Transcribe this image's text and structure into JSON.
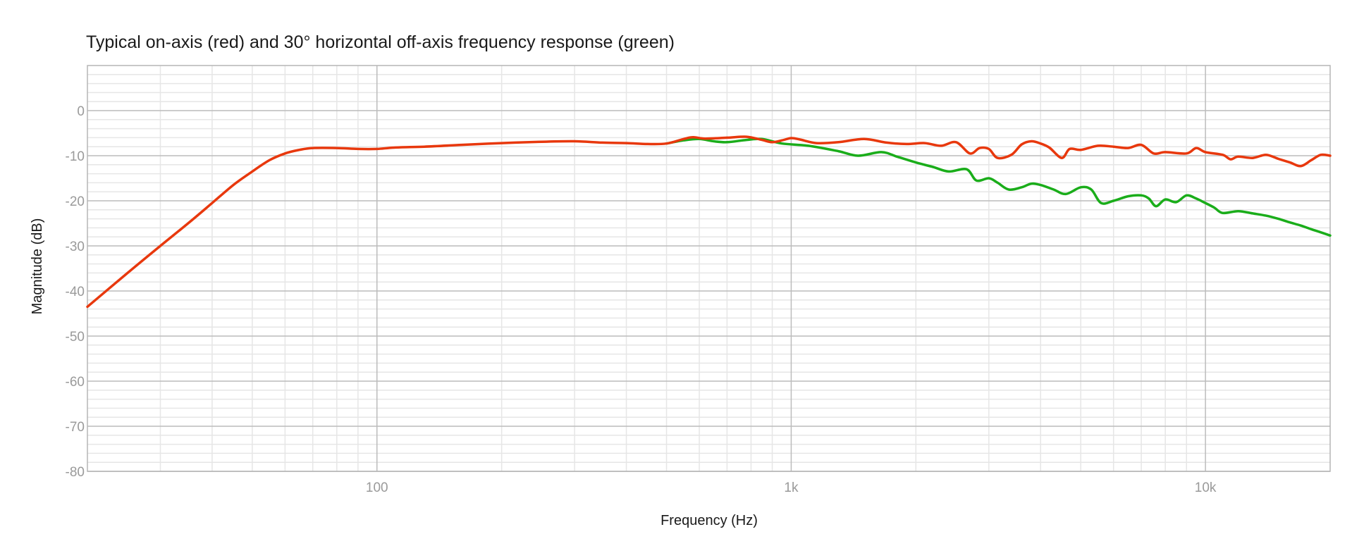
{
  "chart_data": {
    "type": "line",
    "title": "Typical on-axis (red) and 30° horizontal off-axis frequency response (green)",
    "xlabel": "Frequency (Hz)",
    "ylabel": "Magnitude (dB)",
    "xscale": "log",
    "xlim": [
      20,
      20000
    ],
    "ylim": [
      -80,
      10
    ],
    "x_ticks": [
      {
        "value": 100,
        "label": "100"
      },
      {
        "value": 1000,
        "label": "1k"
      },
      {
        "value": 10000,
        "label": "10k"
      }
    ],
    "y_ticks": [
      {
        "value": 0,
        "label": "0"
      },
      {
        "value": -10,
        "label": "-10"
      },
      {
        "value": -20,
        "label": "-20"
      },
      {
        "value": -30,
        "label": "-30"
      },
      {
        "value": -40,
        "label": "-40"
      },
      {
        "value": -50,
        "label": "-50"
      },
      {
        "value": -60,
        "label": "-60"
      },
      {
        "value": -70,
        "label": "-70"
      },
      {
        "value": -80,
        "label": "-80"
      }
    ],
    "grid": true,
    "series": [
      {
        "color": "#e8380d",
        "x": [
          20,
          25,
          30,
          35,
          40,
          45,
          50,
          55,
          60,
          65,
          70,
          80,
          90,
          100,
          110,
          130,
          160,
          200,
          250,
          300,
          350,
          400,
          450,
          500,
          550,
          580,
          620,
          700,
          780,
          850,
          900,
          950,
          1000,
          1050,
          1150,
          1300,
          1500,
          1700,
          1900,
          2100,
          2300,
          2500,
          2700,
          2850,
          3000,
          3150,
          3400,
          3600,
          3800,
          4000,
          4200,
          4500,
          4700,
          5000,
          5500,
          6000,
          6500,
          7000,
          7500,
          8000,
          9000,
          9500,
          10000,
          11000,
          11500,
          12000,
          13000,
          14000,
          15000,
          16000,
          17000,
          18000,
          19000,
          20000
        ],
        "y": [
          -43.5,
          -36,
          -30,
          -25,
          -20.5,
          -16.5,
          -13.5,
          -11,
          -9.5,
          -8.7,
          -8.3,
          -8.3,
          -8.5,
          -8.5,
          -8.2,
          -8,
          -7.6,
          -7.2,
          -6.9,
          -6.8,
          -7.1,
          -7.2,
          -7.4,
          -7.3,
          -6.3,
          -5.9,
          -6.2,
          -6.0,
          -5.8,
          -6.5,
          -7.0,
          -6.6,
          -6.1,
          -6.4,
          -7.2,
          -7.0,
          -6.3,
          -7.1,
          -7.4,
          -7.2,
          -7.8,
          -7.0,
          -9.5,
          -8.3,
          -8.5,
          -10.5,
          -9.8,
          -7.5,
          -6.8,
          -7.3,
          -8.2,
          -10.5,
          -8.5,
          -8.7,
          -7.8,
          -8.0,
          -8.3,
          -7.6,
          -9.5,
          -9.2,
          -9.5,
          -8.3,
          -9.2,
          -9.8,
          -10.8,
          -10.2,
          -10.5,
          -9.8,
          -10.7,
          -11.5,
          -12.3,
          -11.0,
          -9.8,
          -10.0
        ]
      },
      {
        "color": "#1aad1a",
        "x": [
          500,
          550,
          600,
          650,
          700,
          780,
          850,
          950,
          1100,
          1300,
          1450,
          1650,
          1800,
          2000,
          2200,
          2400,
          2650,
          2800,
          3000,
          3150,
          3350,
          3600,
          3800,
          4000,
          4300,
          4600,
          5000,
          5300,
          5600,
          6000,
          6500,
          7000,
          7300,
          7600,
          8000,
          8500,
          9000,
          9500,
          10000,
          10500,
          11000,
          12000,
          13000,
          14000,
          15000,
          16000,
          17000,
          18000,
          19000,
          20000
        ],
        "y": [
          -7.3,
          -6.6,
          -6.3,
          -6.8,
          -7.0,
          -6.5,
          -6.3,
          -7.3,
          -7.8,
          -9.0,
          -10.0,
          -9.2,
          -10.2,
          -11.5,
          -12.5,
          -13.5,
          -13.0,
          -15.5,
          -15.0,
          -16.0,
          -17.5,
          -17.0,
          -16.2,
          -16.5,
          -17.5,
          -18.5,
          -17.0,
          -17.5,
          -20.5,
          -20.0,
          -19.0,
          -18.8,
          -19.5,
          -21.2,
          -19.7,
          -20.3,
          -18.8,
          -19.5,
          -20.5,
          -21.5,
          -22.7,
          -22.3,
          -22.8,
          -23.3,
          -24.0,
          -24.8,
          -25.5,
          -26.3,
          -27.0,
          -27.7
        ]
      }
    ]
  }
}
